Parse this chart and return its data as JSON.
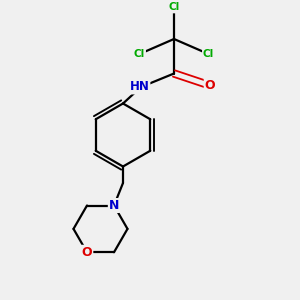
{
  "background_color": "#f0f0f0",
  "atom_colors": {
    "C": "#000000",
    "N": "#0000cc",
    "O": "#dd0000",
    "Cl": "#00aa00",
    "H": "#000000"
  },
  "bond_color": "#000000",
  "figsize": [
    3.0,
    3.0
  ],
  "dpi": 100,
  "xlim": [
    0,
    10
  ],
  "ylim": [
    0,
    10
  ]
}
